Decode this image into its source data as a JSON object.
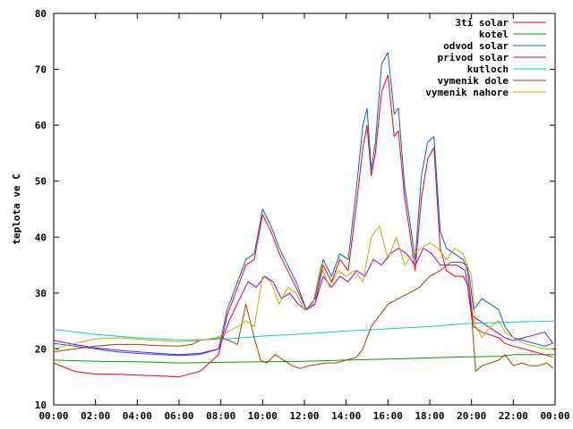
{
  "chart_data": {
    "type": "line",
    "title": "",
    "xlabel": "",
    "ylabel": "teplota ve C",
    "xlim": [
      0,
      24
    ],
    "ylim": [
      10,
      80
    ],
    "grid": false,
    "legend_position": "top-right",
    "x_ticks": [
      {
        "value": 0,
        "label": "00:00"
      },
      {
        "value": 2,
        "label": "02:00"
      },
      {
        "value": 4,
        "label": "04:00"
      },
      {
        "value": 6,
        "label": "06:00"
      },
      {
        "value": 8,
        "label": "08:00"
      },
      {
        "value": 10,
        "label": "10:00"
      },
      {
        "value": 12,
        "label": "12:00"
      },
      {
        "value": 14,
        "label": "14:00"
      },
      {
        "value": 16,
        "label": "16:00"
      },
      {
        "value": 18,
        "label": "18:00"
      },
      {
        "value": 20,
        "label": "20:00"
      },
      {
        "value": 22,
        "label": "22:00"
      },
      {
        "value": 24,
        "label": "00:00"
      }
    ],
    "y_ticks": [
      {
        "value": 10,
        "label": "10"
      },
      {
        "value": 20,
        "label": "20"
      },
      {
        "value": 30,
        "label": "30"
      },
      {
        "value": 40,
        "label": "40"
      },
      {
        "value": 50,
        "label": "50"
      },
      {
        "value": 60,
        "label": "60"
      },
      {
        "value": 70,
        "label": "70"
      },
      {
        "value": 80,
        "label": "80"
      }
    ],
    "series": [
      {
        "name": "3ti solar",
        "color": "#ff0000",
        "x": [
          0,
          1,
          2,
          3,
          4,
          5,
          6,
          7,
          7.9,
          8.3,
          8.7,
          9.2,
          9.6,
          10.0,
          10.4,
          10.8,
          11.2,
          11.6,
          12.1,
          12.5,
          12.9,
          13.3,
          13.7,
          14.1,
          14.5,
          14.8,
          15.0,
          15.2,
          15.4,
          15.7,
          16.0,
          16.3,
          16.5,
          16.8,
          17.0,
          17.3,
          17.6,
          17.9,
          18.2,
          18.5,
          18.8,
          19.2,
          19.6,
          19.9,
          20.1,
          20.5,
          20.9,
          21.3,
          21.6,
          22.0,
          22.5,
          23.0,
          23.5,
          23.9
        ],
        "y": [
          17.5,
          16,
          15.5,
          15.5,
          15.3,
          15.2,
          15,
          16,
          19,
          26,
          30,
          35,
          36,
          44,
          41,
          37,
          34,
          31,
          27,
          28,
          35,
          32,
          36,
          34,
          46,
          56,
          60,
          51,
          55,
          66,
          69,
          58,
          59,
          47,
          42,
          34,
          47,
          54,
          56,
          38,
          34,
          33,
          33,
          31,
          24,
          23,
          22.5,
          22,
          21,
          20.5,
          20,
          19.5,
          19,
          18.5
        ]
      },
      {
        "name": "kotel",
        "color": "#00a000",
        "x": [
          0,
          2,
          4,
          6,
          8,
          10,
          12,
          14,
          16,
          18,
          20,
          21.5,
          22,
          23,
          24
        ],
        "y": [
          18,
          17.8,
          17.7,
          17.5,
          17.6,
          17.7,
          17.8,
          18,
          18.2,
          18.4,
          18.6,
          18.7,
          19,
          19,
          19
        ]
      },
      {
        "name": "odvod solar",
        "color": "#0060e0",
        "x": [
          0,
          1,
          2,
          3,
          4,
          5,
          6,
          7,
          7.9,
          8.3,
          8.7,
          9.2,
          9.6,
          10.0,
          10.4,
          10.8,
          11.2,
          11.6,
          12.1,
          12.5,
          12.9,
          13.3,
          13.7,
          14.1,
          14.5,
          14.8,
          15.0,
          15.2,
          15.4,
          15.7,
          16.0,
          16.3,
          16.5,
          16.8,
          17.0,
          17.3,
          17.6,
          17.9,
          18.2,
          18.5,
          18.8,
          19.2,
          19.6,
          19.9,
          20.1,
          20.5,
          20.9,
          21.3,
          21.6,
          22.0,
          22.5,
          23.0,
          23.5,
          23.9
        ],
        "y": [
          21,
          20.5,
          20,
          19.5,
          19.2,
          19,
          18.8,
          19,
          20,
          27,
          31,
          36,
          37,
          45,
          42,
          38,
          35,
          32,
          27,
          29,
          36,
          33,
          37,
          36,
          49,
          60,
          63,
          52,
          57,
          71,
          73,
          62,
          63,
          49,
          44,
          36,
          51,
          57,
          58,
          41,
          38,
          37,
          36,
          33,
          27,
          29,
          28,
          27,
          24,
          22,
          21.5,
          21,
          20.5,
          21
        ]
      },
      {
        "name": "privod solar",
        "color": "#a000d0",
        "x": [
          0,
          1,
          2,
          3,
          4,
          5,
          6,
          7,
          7.9,
          8.4,
          8.9,
          9.3,
          9.7,
          10.1,
          10.5,
          10.9,
          11.3,
          11.7,
          12.1,
          12.5,
          12.9,
          13.3,
          13.7,
          14.1,
          14.5,
          14.9,
          15.3,
          15.7,
          16.1,
          16.5,
          16.9,
          17.3,
          17.7,
          18.1,
          18.5,
          18.9,
          19.3,
          19.7,
          20.0,
          20.4,
          20.8,
          21.2,
          21.6,
          22.0,
          22.5,
          23.0,
          23.5,
          23.9
        ],
        "y": [
          21.5,
          20.8,
          20.2,
          19.8,
          19.5,
          19.2,
          19,
          19.2,
          20,
          25,
          29,
          32,
          31,
          33,
          32,
          29,
          30,
          28,
          27,
          28,
          33,
          31,
          33,
          32,
          34,
          33,
          36,
          35,
          37,
          38,
          37,
          35,
          38,
          37,
          35,
          35,
          35,
          34,
          26,
          25,
          24,
          23,
          22,
          21.5,
          22,
          22.5,
          23,
          21
        ]
      },
      {
        "name": "kutloch",
        "color": "#00d0d0",
        "x": [
          0,
          2,
          4,
          6,
          8,
          10,
          12,
          14,
          16,
          18,
          20,
          22,
          24
        ],
        "y": [
          23.5,
          22.6,
          22,
          21.6,
          21.7,
          22.3,
          22.7,
          23.2,
          23.6,
          24,
          24.6,
          24.8,
          25
        ]
      },
      {
        "name": "vymenik dole",
        "color": "#a04000",
        "x": [
          0,
          1,
          2,
          3,
          4,
          5,
          6,
          6.6,
          7.0,
          7.5,
          8.0,
          8.4,
          8.8,
          9.2,
          9.6,
          9.9,
          10.2,
          10.6,
          11.0,
          11.4,
          11.8,
          12.2,
          12.6,
          13.0,
          13.5,
          14.0,
          14.5,
          14.8,
          15.2,
          15.6,
          16.0,
          16.5,
          17.0,
          17.5,
          18.0,
          18.5,
          19.0,
          19.5,
          19.8,
          20.0,
          20.2,
          20.5,
          20.9,
          21.3,
          21.6,
          22.0,
          22.4,
          22.8,
          23.2,
          23.6,
          23.9
        ],
        "y": [
          19.5,
          20,
          20.5,
          20.8,
          20.8,
          20.6,
          20.5,
          20.8,
          21.5,
          21.8,
          22,
          21.5,
          20.8,
          28,
          22,
          18,
          17.5,
          19,
          18,
          17,
          16.5,
          17,
          17.2,
          17.5,
          17.5,
          18,
          18.5,
          20,
          24,
          26,
          28,
          29,
          30,
          31,
          33,
          34,
          35.5,
          35.5,
          35,
          26,
          16,
          17,
          17.5,
          18,
          19,
          17,
          17.5,
          17,
          17,
          17.5,
          16.5
        ]
      },
      {
        "name": "vymenik nahore",
        "color": "#c0b000",
        "x": [
          0,
          1,
          2,
          3,
          4,
          5,
          6,
          7,
          7.8,
          8.3,
          8.8,
          9.2,
          9.6,
          10.0,
          10.4,
          10.8,
          11.2,
          11.6,
          12.0,
          12.4,
          12.8,
          13.2,
          13.6,
          14.0,
          14.4,
          14.8,
          15.2,
          15.6,
          16.0,
          16.4,
          16.8,
          17.2,
          17.6,
          18.0,
          18.4,
          18.8,
          19.2,
          19.6,
          20.0,
          20.2,
          20.5,
          20.9,
          21.3,
          21.6,
          22.0,
          22.5,
          23.0,
          23.5,
          23.9
        ],
        "y": [
          20,
          21,
          21.8,
          22,
          21.8,
          21.5,
          21.3,
          21.5,
          22,
          23,
          24,
          25,
          24,
          33,
          32,
          28,
          31,
          30,
          27,
          28,
          35,
          31,
          34,
          33,
          34,
          32,
          40,
          42,
          36,
          40,
          35,
          37,
          38,
          39,
          38,
          36,
          38,
          37,
          33,
          24,
          22,
          24,
          25,
          23,
          22,
          21,
          20.5,
          20,
          20
        ]
      }
    ]
  }
}
